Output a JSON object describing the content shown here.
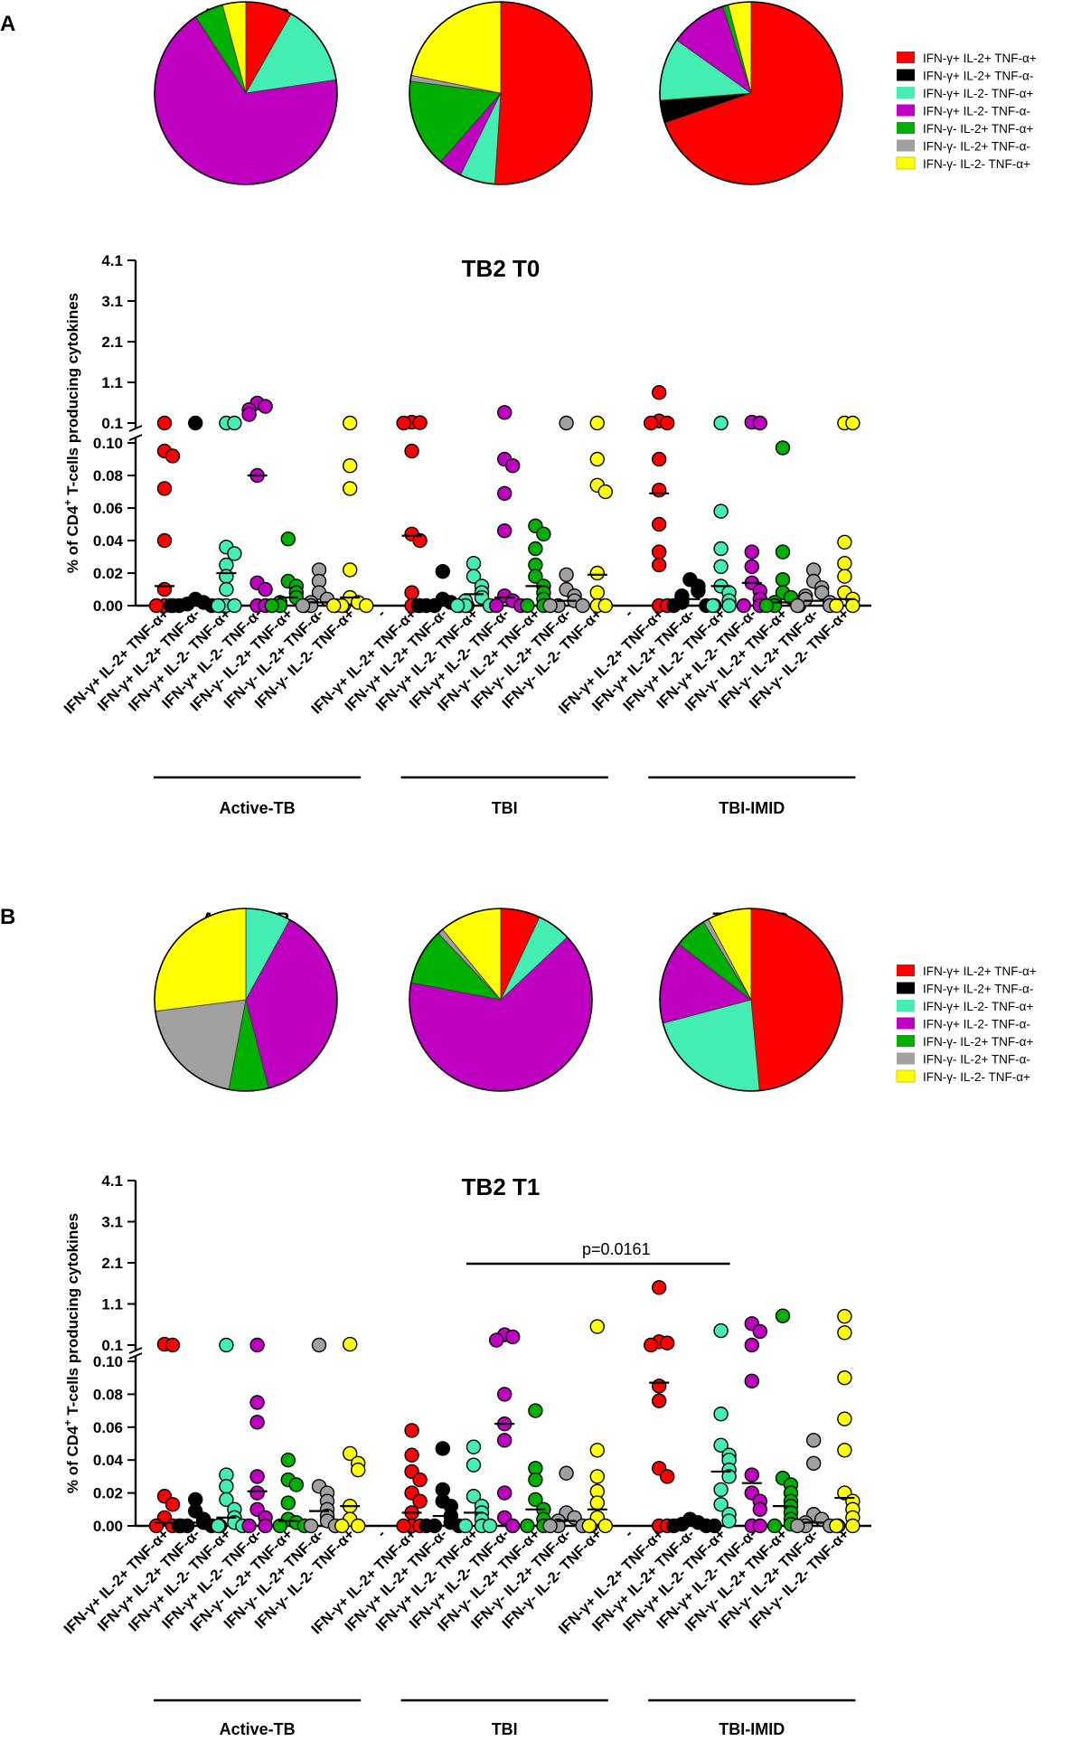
{
  "panel_labels": [
    "A",
    "B"
  ],
  "legend": {
    "entries": [
      {
        "label": "IFN-γ+ IL-2+ TNF-α+",
        "color": "#ff0000"
      },
      {
        "label": "IFN-γ+ IL-2+ TNF-α-",
        "color": "#000000"
      },
      {
        "label": "IFN-γ+ IL-2- TNF-α+",
        "color": "#44eeb3"
      },
      {
        "label": "IFN-γ+ IL-2- TNF-α-",
        "color": "#c000c0"
      },
      {
        "label": "IFN-γ- IL-2+ TNF-α+",
        "color": "#00b000"
      },
      {
        "label": "IFN-γ- IL-2+ TNF-α-",
        "color": "#a0a0a0"
      },
      {
        "label": "IFN-γ- IL-2- TNF-α+",
        "color": "#ffff00"
      }
    ]
  },
  "chart_data": [
    {
      "panel": "A",
      "type": "pie",
      "pies": [
        {
          "title": "Active-TB",
          "values": [
            8,
            0,
            14,
            66,
            5,
            0,
            4
          ]
        },
        {
          "title": "TBI",
          "values": [
            49,
            0,
            6,
            4,
            15,
            1,
            21
          ]
        },
        {
          "panel": "A",
          "title": "TBI-IMID",
          "values": [
            69,
            4,
            11,
            10,
            1,
            0,
            4
          ]
        }
      ]
    },
    {
      "panel": "A",
      "type": "scatter",
      "title": "TB2 T0",
      "ylabel": "% of CD4+ T-cells producing cytokines",
      "ylabel_main": "% of CD4",
      "ylabel_sup": "+",
      "ylabel_rest": " T-cells producing cytokines",
      "y_upper_ticks": [
        "4.1",
        "3.1",
        "2.1",
        "1.1",
        "0.1"
      ],
      "y_upper_range": [
        0.1,
        4.1
      ],
      "y_lower_ticks": [
        "0.10",
        "0.08",
        "0.06",
        "0.04",
        "0.02",
        "0.00"
      ],
      "y_lower_range": [
        0,
        0.1
      ],
      "categories": [
        "IFN-γ+ IL-2+ TNF-α+",
        "IFN-γ+ IL-2+ TNF-α-",
        "IFN-γ+ IL-2- TNF-α+",
        "IFN-γ+ IL-2- TNF-α-",
        "IFN-γ- IL-2+ TNF-α+",
        "IFN-γ- IL-2+ TNF-α-",
        "IFN-γ- IL-2- TNF-α+",
        "-",
        "IFN-γ+ IL-2+ TNF-α+",
        "IFN-γ+ IL-2+ TNF-α-",
        "IFN-γ+ IL-2- TNF-α+",
        "IFN-γ+ IL-2- TNF-α-",
        "IFN-γ- IL-2+ TNF-α+",
        "IFN-γ- IL-2+ TNF-α-",
        "IFN-γ- IL-2- TNF-α+",
        "-",
        "IFN-γ+ IL-2+ TNF-α+",
        "IFN-γ+ IL-2+ TNF-α-",
        "IFN-γ+ IL-2- TNF-α+",
        "IFN-γ+ IL-2- TNF-α-",
        "IFN-γ- IL-2+ TNF-α+",
        "IFN-γ- IL-2+ TNF-α-",
        "IFN-γ- IL-2- TNF-α+"
      ],
      "groups": [
        {
          "label": "Active-TB",
          "from": 0,
          "to": 6
        },
        {
          "label": "TBI",
          "from": 8,
          "to": 14
        },
        {
          "label": "TBI-IMID",
          "from": 16,
          "to": 22
        }
      ],
      "series": [
        {
          "idx": 0,
          "values": [
            0.1,
            0.095,
            0.092,
            0.072,
            0.04,
            0.01,
            0,
            0,
            0
          ],
          "median": 0.012
        },
        {
          "idx": 1,
          "values": [
            0.1,
            0.004,
            0.002,
            0.001,
            0,
            0,
            0,
            0
          ],
          "median": 0.001
        },
        {
          "idx": 2,
          "values": [
            0.1,
            0.1,
            0.036,
            0.032,
            0.025,
            0.018,
            0.01,
            0,
            0,
            0
          ],
          "median": 0.02
        },
        {
          "idx": 3,
          "values": [
            0.59,
            0.51,
            0.43,
            0.31,
            0.08,
            0.014,
            0.01,
            0,
            0
          ],
          "median": 0.08
        },
        {
          "idx": 4,
          "values": [
            0.041,
            0.015,
            0.012,
            0.008,
            0.005,
            0.002,
            0,
            0,
            0
          ],
          "median": 0.005
        },
        {
          "idx": 5,
          "values": [
            0.022,
            0.015,
            0.008,
            0.004,
            0.002,
            0,
            0,
            0,
            0
          ],
          "median": 0.002
        },
        {
          "idx": 6,
          "values": [
            0.1,
            0.086,
            0.072,
            0.022,
            0.005,
            0.002,
            0,
            0,
            0
          ],
          "median": 0.005
        },
        {
          "idx": 8,
          "values": [
            0.12,
            0.11,
            0.1,
            0.095,
            0.044,
            0.04,
            0.008,
            0,
            0
          ],
          "median": 0.043
        },
        {
          "idx": 9,
          "values": [
            0.021,
            0.004,
            0.002,
            0,
            0,
            0,
            0,
            0
          ],
          "median": 0.001
        },
        {
          "idx": 10,
          "values": [
            0.026,
            0.018,
            0.012,
            0.008,
            0.005,
            0.003,
            0,
            0,
            0
          ],
          "median": 0.007
        },
        {
          "idx": 11,
          "values": [
            0.36,
            0.09,
            0.086,
            0.069,
            0.046,
            0.006,
            0.003,
            0,
            0
          ],
          "median": 0.005
        },
        {
          "idx": 12,
          "values": [
            0.049,
            0.044,
            0.035,
            0.025,
            0.018,
            0.012,
            0.008,
            0.004,
            0,
            0
          ],
          "median": 0.012
        },
        {
          "idx": 13,
          "values": [
            0.1,
            0.019,
            0.01,
            0.006,
            0.003,
            0,
            0,
            0
          ],
          "median": 0.003
        },
        {
          "idx": 14,
          "values": [
            0.1,
            0.09,
            0.074,
            0.07,
            0.02,
            0.008,
            0,
            0
          ],
          "median": 0.019
        },
        {
          "idx": 16,
          "values": [
            0.85,
            0.15,
            0.1,
            0.1,
            0.09,
            0.071,
            0.05,
            0.033,
            0.025,
            0,
            0
          ],
          "median": 0.069
        },
        {
          "idx": 17,
          "values": [
            0.016,
            0.012,
            0.009,
            0.006,
            0.004,
            0.002,
            0,
            0,
            0
          ],
          "median": 0.004
        },
        {
          "idx": 18,
          "values": [
            0.1,
            0.058,
            0.035,
            0.024,
            0.012,
            0.008,
            0.003,
            0,
            0
          ],
          "median": 0.012
        },
        {
          "idx": 19,
          "values": [
            0.12,
            0.1,
            0.033,
            0.024,
            0.014,
            0.009,
            0.004,
            0,
            0
          ],
          "median": 0.014
        },
        {
          "idx": 20,
          "values": [
            0.097,
            0.033,
            0.016,
            0.008,
            0.005,
            0.002,
            0,
            0,
            0
          ],
          "median": 0.002
        },
        {
          "idx": 21,
          "values": [
            0.022,
            0.015,
            0.011,
            0.008,
            0.006,
            0.004,
            0.002,
            0,
            0
          ],
          "median": 0.003
        },
        {
          "idx": 22,
          "values": [
            0.1,
            0.1,
            0.039,
            0.026,
            0.018,
            0.008,
            0.004,
            0,
            0
          ],
          "median": 0.004
        }
      ]
    },
    {
      "panel": "B",
      "type": "pie",
      "pies": [
        {
          "title": "Active-TB",
          "values": [
            0,
            0,
            8,
            38,
            7,
            20,
            27
          ]
        },
        {
          "title": "TBI",
          "values": [
            7,
            0,
            6,
            65,
            10,
            1,
            11
          ]
        },
        {
          "title": "TBI-IMID",
          "values": [
            50,
            0,
            23,
            15,
            6,
            1,
            8
          ]
        }
      ]
    },
    {
      "panel": "B",
      "type": "scatter",
      "title": "TB2 T1",
      "ylabel": "% of CD4+ T-cells producing cytokines",
      "ylabel_main": "% of CD4",
      "ylabel_sup": "+",
      "ylabel_rest": " T-cells producing cytokines",
      "y_upper_ticks": [
        "4.1",
        "3.1",
        "2.1",
        "1.1",
        "0.1"
      ],
      "y_upper_range": [
        0.1,
        4.1
      ],
      "y_lower_ticks": [
        "0.10",
        "0.08",
        "0.06",
        "0.04",
        "0.02",
        "0.00"
      ],
      "y_lower_range": [
        0,
        0.1
      ],
      "annotation": {
        "text": "p=0.0161",
        "from": 10,
        "to": 18
      },
      "categories": [
        "IFN-γ+ IL-2+ TNF-α+",
        "IFN-γ+ IL-2+ TNF-α-",
        "IFN-γ+ IL-2- TNF-α+",
        "IFN-γ+ IL-2- TNF-α-",
        "IFN-γ- IL-2+ TNF-α+",
        "IFN-γ- IL-2+ TNF-α-",
        "IFN-γ- IL-2- TNF-α+",
        "-",
        "IFN-γ+ IL-2+ TNF-α+",
        "IFN-γ+ IL-2+ TNF-α-",
        "IFN-γ+ IL-2- TNF-α+",
        "IFN-γ+ IL-2- TNF-α-",
        "IFN-γ- IL-2+ TNF-α+",
        "IFN-γ- IL-2+ TNF-α-",
        "IFN-γ- IL-2- TNF-α+",
        "-",
        "IFN-γ+ IL-2+ TNF-α+",
        "IFN-γ+ IL-2+ TNF-α-",
        "IFN-γ+ IL-2- TNF-α+",
        "IFN-γ+ IL-2- TNF-α-",
        "IFN-γ- IL-2+ TNF-α+",
        "IFN-γ- IL-2+ TNF-α-",
        "IFN-γ- IL-2- TNF-α+"
      ],
      "groups": [
        {
          "label": "Active-TB",
          "from": 0,
          "to": 6
        },
        {
          "label": "TBI",
          "from": 8,
          "to": 14
        },
        {
          "label": "TBI-IMID",
          "from": 16,
          "to": 22
        }
      ],
      "series": [
        {
          "idx": 0,
          "values": [
            0.12,
            0.1,
            0.018,
            0.013,
            0.005,
            0,
            0,
            0
          ],
          "median": 0.002
        },
        {
          "idx": 1,
          "values": [
            0.016,
            0.009,
            0.004,
            0.002,
            0,
            0,
            0,
            0
          ],
          "median": 0.002
        },
        {
          "idx": 2,
          "values": [
            0.1,
            0.031,
            0.024,
            0.016,
            0.01,
            0.005,
            0.002,
            0,
            0
          ],
          "median": 0.005
        },
        {
          "idx": 3,
          "values": [
            0.1,
            0.075,
            0.063,
            0.03,
            0.02,
            0.01,
            0.005,
            0,
            0
          ],
          "median": 0.021
        },
        {
          "idx": 4,
          "values": [
            0.04,
            0.028,
            0.025,
            0.014,
            0.004,
            0.002,
            0,
            0
          ],
          "median": 0.003
        },
        {
          "idx": 5,
          "values": [
            0.1,
            0.024,
            0.02,
            0.015,
            0.01,
            0.006,
            0.003,
            0,
            0
          ],
          "median": 0.009
        },
        {
          "idx": 6,
          "values": [
            0.12,
            0.044,
            0.038,
            0.034,
            0.012,
            0.004,
            0,
            0
          ],
          "median": 0.012
        },
        {
          "idx": 8,
          "values": [
            0.058,
            0.043,
            0.033,
            0.028,
            0.02,
            0.015,
            0.008,
            0,
            0,
            0
          ],
          "median": 0.008
        },
        {
          "idx": 9,
          "values": [
            0.047,
            0.022,
            0.015,
            0.012,
            0.006,
            0.002,
            0,
            0,
            0
          ],
          "median": 0.006
        },
        {
          "idx": 10,
          "values": [
            0.048,
            0.037,
            0.018,
            0.012,
            0.008,
            0.004,
            0,
            0,
            0
          ],
          "median": 0.008
        },
        {
          "idx": 11,
          "values": [
            0.35,
            0.3,
            0.22,
            0.08,
            0.062,
            0.052,
            0.02,
            0.005,
            0
          ],
          "median": 0.062
        },
        {
          "idx": 12,
          "values": [
            0.07,
            0.035,
            0.028,
            0.016,
            0.01,
            0.004,
            0,
            0
          ],
          "median": 0.01
        },
        {
          "idx": 13,
          "values": [
            0.032,
            0.008,
            0.005,
            0.003,
            0,
            0,
            0,
            0
          ],
          "median": 0.003
        },
        {
          "idx": 14,
          "values": [
            0.55,
            0.046,
            0.03,
            0.021,
            0.014,
            0.005,
            0,
            0
          ],
          "median": 0.01
        },
        {
          "idx": 16,
          "values": [
            1.5,
            0.18,
            0.15,
            0.1,
            0.085,
            0.076,
            0.035,
            0.03,
            0,
            0
          ],
          "median": 0.087
        },
        {
          "idx": 17,
          "values": [
            0.004,
            0.002,
            0.001,
            0,
            0,
            0
          ],
          "median": 0.001
        },
        {
          "idx": 18,
          "values": [
            0.45,
            0.068,
            0.049,
            0.043,
            0.04,
            0.034,
            0.03,
            0.022,
            0.013,
            0.007,
            0.003
          ],
          "median": 0.033
        },
        {
          "idx": 19,
          "values": [
            0.62,
            0.43,
            0.1,
            0.088,
            0.031,
            0.02,
            0.015,
            0.01,
            0,
            0
          ],
          "median": 0.026
        },
        {
          "idx": 20,
          "values": [
            0.81,
            0.029,
            0.025,
            0.02,
            0.015,
            0.012,
            0.008,
            0.004,
            0.001,
            0
          ],
          "median": 0.012
        },
        {
          "idx": 21,
          "values": [
            0.052,
            0.038,
            0.007,
            0.004,
            0.002,
            0,
            0,
            0,
            0
          ],
          "median": 0.002
        },
        {
          "idx": 22,
          "values": [
            0.8,
            0.4,
            0.09,
            0.065,
            0.046,
            0.02,
            0.015,
            0.01,
            0.005,
            0,
            0
          ],
          "median": 0.017
        }
      ]
    }
  ]
}
